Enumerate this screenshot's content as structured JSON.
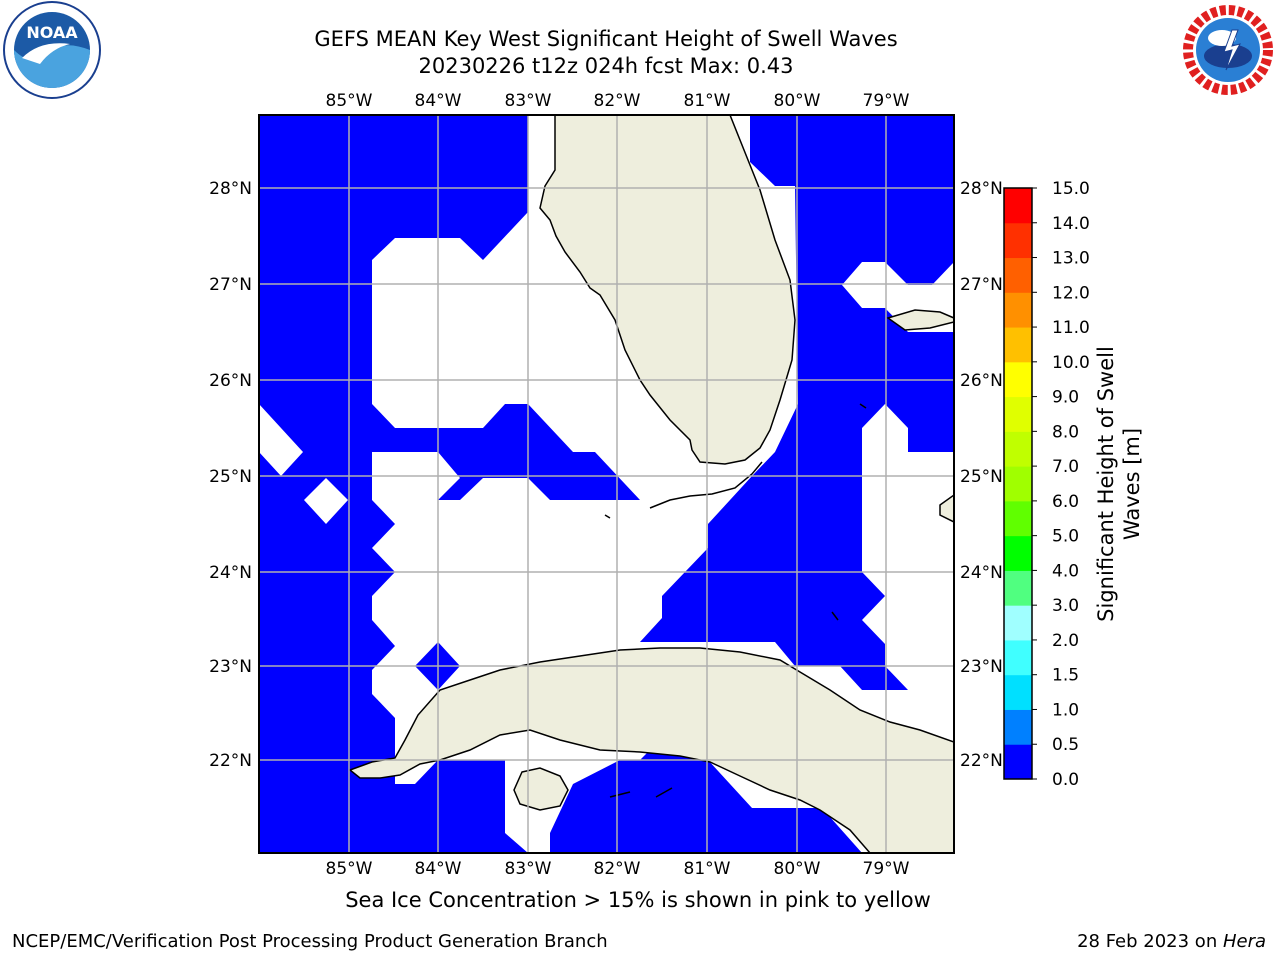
{
  "title": {
    "line1": "GEFS MEAN Key West Significant Height of Swell Waves",
    "line2": "20230226 t12z 024h fcst   Max: 0.43"
  },
  "logos": {
    "left": {
      "icon": "noaa-logo-icon",
      "text": "NOAA"
    },
    "right": {
      "icon": "nws-logo-icon",
      "text": "NATIONAL WEATHER SERVICE"
    }
  },
  "map": {
    "region": "Florida Keys / Florida Straits / Cuba",
    "lon_ticks": [
      "85°W",
      "84°W",
      "83°W",
      "82°W",
      "81°W",
      "80°W",
      "79°W"
    ],
    "lat_ticks": [
      "28°N",
      "27°N",
      "26°N",
      "25°N",
      "24°N",
      "23°N",
      "22°N"
    ],
    "colors": {
      "land": "#eeeedd",
      "ocean_fill": "#0000ff",
      "grid": "#b0b0b0",
      "background": "#ffffff"
    }
  },
  "colorbar": {
    "label": "Significant Height of Swell Waves [m]",
    "ticks": [
      "0.0",
      "0.5",
      "1.0",
      "1.5",
      "2.0",
      "3.0",
      "4.0",
      "5.0",
      "6.0",
      "7.0",
      "8.0",
      "9.0",
      "10.0",
      "11.0",
      "12.0",
      "13.0",
      "14.0",
      "15.0"
    ],
    "colors": [
      "#0000ff",
      "#0080ff",
      "#00e0ff",
      "#40ffff",
      "#a0ffff",
      "#50ff80",
      "#00ff00",
      "#60ff00",
      "#a0ff00",
      "#c0ff00",
      "#e0ff00",
      "#ffff00",
      "#ffc000",
      "#ff9000",
      "#ff6000",
      "#ff3000",
      "#ff0000"
    ]
  },
  "note": "Sea Ice Concentration > 15% is shown in pink to yellow",
  "footer": {
    "left": "NCEP/EMC/Verification Post Processing Product Generation Branch",
    "right_prefix": "28 Feb 2023 on ",
    "right_emph": "Hera"
  }
}
